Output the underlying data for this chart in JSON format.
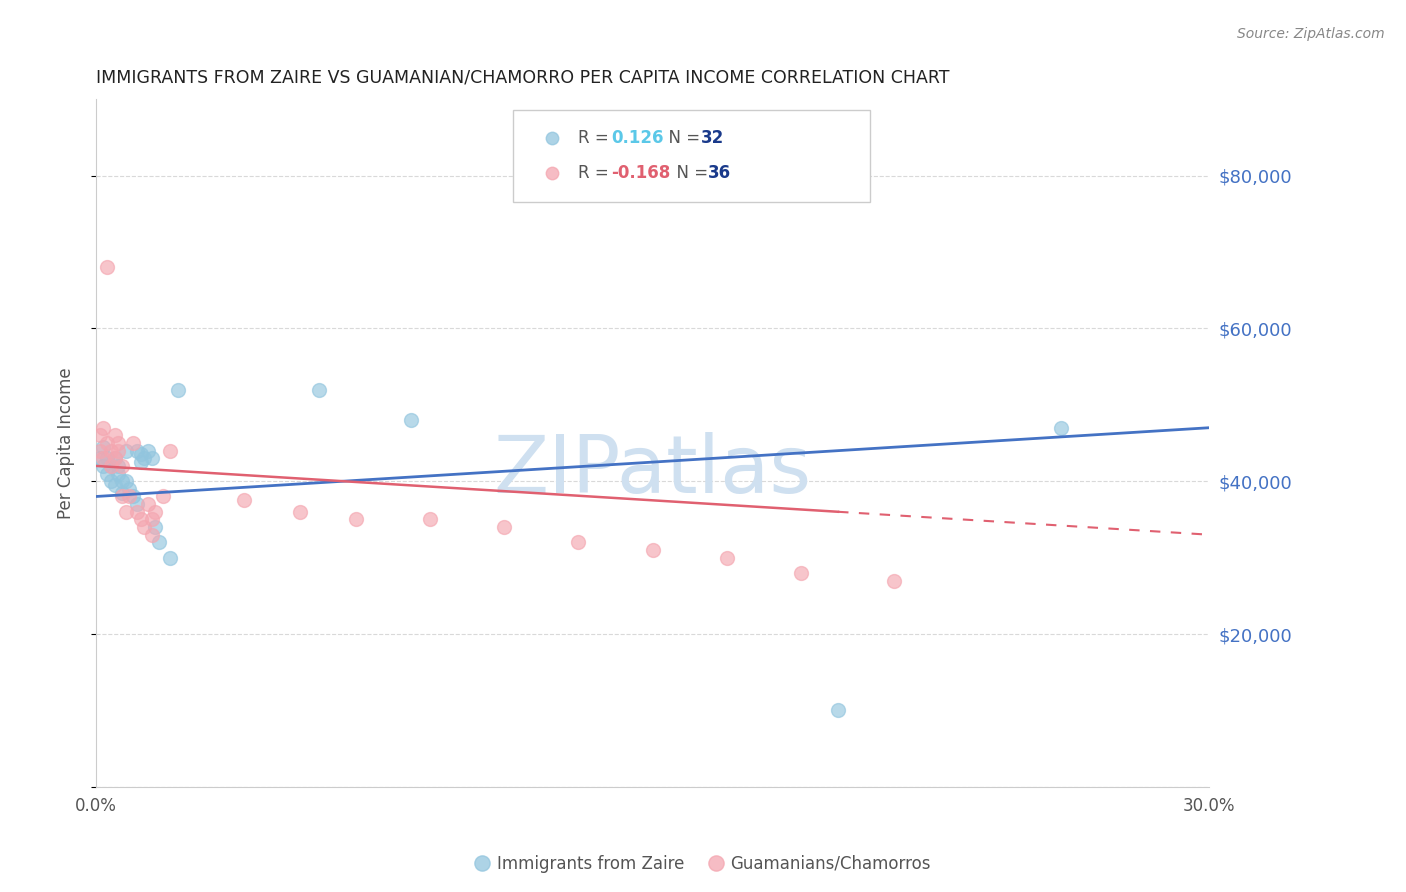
{
  "title": "IMMIGRANTS FROM ZAIRE VS GUAMANIAN/CHAMORRO PER CAPITA INCOME CORRELATION CHART",
  "source": "Source: ZipAtlas.com",
  "ylabel": "Per Capita Income",
  "xlim": [
    0.0,
    0.3
  ],
  "ylim": [
    0,
    90000
  ],
  "series1_label": "Immigrants from Zaire",
  "series1_R": "0.126",
  "series1_N": "32",
  "series1_color": "#92c5de",
  "series2_label": "Guamanians/Chamorros",
  "series2_R": "-0.168",
  "series2_N": "36",
  "series2_color": "#f4a6b0",
  "watermark": "ZIPatlas",
  "watermark_color": "#cfe0f0",
  "background_color": "#ffffff",
  "grid_color": "#d9d9d9",
  "right_tick_color": "#4472c4",
  "trend1_color": "#4472c4",
  "trend2_color": "#e06070",
  "legend_R_color1": "#5bc8e8",
  "legend_N_color1": "#1a3a6b",
  "legend_R_color2": "#e06070",
  "legend_N_color2": "#1a3a6b",
  "blue_x": [
    0.001,
    0.002,
    0.002,
    0.003,
    0.003,
    0.004,
    0.004,
    0.005,
    0.005,
    0.006,
    0.006,
    0.007,
    0.007,
    0.008,
    0.008,
    0.009,
    0.01,
    0.011,
    0.011,
    0.012,
    0.012,
    0.013,
    0.014,
    0.015,
    0.016,
    0.017,
    0.02,
    0.022,
    0.06,
    0.085,
    0.2,
    0.26
  ],
  "blue_y": [
    43000,
    44500,
    42000,
    43000,
    41000,
    42000,
    40000,
    43000,
    39500,
    42000,
    41000,
    40000,
    38500,
    44000,
    40000,
    39000,
    38000,
    44000,
    37000,
    43500,
    42500,
    43000,
    44000,
    43000,
    34000,
    32000,
    30000,
    52000,
    52000,
    48000,
    10000,
    47000
  ],
  "pink_x": [
    0.001,
    0.001,
    0.002,
    0.002,
    0.003,
    0.003,
    0.004,
    0.004,
    0.005,
    0.005,
    0.006,
    0.006,
    0.007,
    0.007,
    0.008,
    0.009,
    0.01,
    0.011,
    0.012,
    0.013,
    0.014,
    0.015,
    0.015,
    0.016,
    0.018,
    0.02,
    0.04,
    0.055,
    0.07,
    0.09,
    0.11,
    0.13,
    0.15,
    0.17,
    0.19,
    0.215
  ],
  "pink_y": [
    46000,
    44000,
    47000,
    43000,
    68000,
    45000,
    44000,
    42000,
    46000,
    43000,
    45000,
    44000,
    42000,
    38000,
    36000,
    38000,
    45000,
    36000,
    35000,
    34000,
    37000,
    35000,
    33000,
    36000,
    38000,
    44000,
    37500,
    36000,
    35000,
    35000,
    34000,
    32000,
    31000,
    30000,
    28000,
    27000
  ],
  "trend1_x0": 0.0,
  "trend1_y0": 38000,
  "trend1_x1": 0.3,
  "trend1_y1": 47000,
  "trend2_x0": 0.0,
  "trend2_y0": 42000,
  "trend2_x1": 0.2,
  "trend2_y1": 36000,
  "trend2_dash_x0": 0.2,
  "trend2_dash_y0": 36000,
  "trend2_dash_x1": 0.3,
  "trend2_dash_y1": 33000
}
